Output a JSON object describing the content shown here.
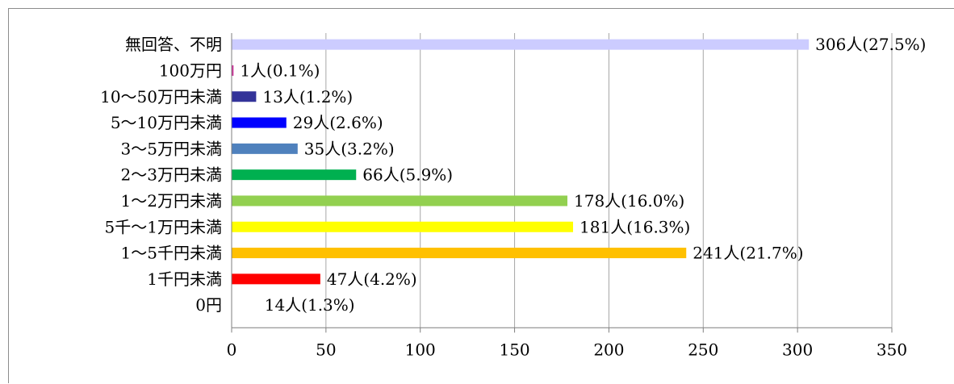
{
  "chart_data": {
    "type": "bar",
    "orientation": "horizontal",
    "categories": [
      "無回答、不明",
      "100万円",
      "10～50万円未満",
      "5～10万円未満",
      "3～5万円未満",
      "2～3万円未満",
      "1～2万円未満",
      "5千～1万円未満",
      "1～5千円未満",
      "1千円未満",
      "0円"
    ],
    "values": [
      306,
      1,
      13,
      29,
      35,
      66,
      178,
      181,
      241,
      47,
      14
    ],
    "data_labels": [
      "306人(27.5%)",
      "1人(0.1%)",
      "13人(1.2%)",
      "29人(2.6%)",
      "35人(3.2%)",
      "66人(5.9%)",
      "178人(16.0%)",
      "181人(16.3%)",
      "241人(21.7%)",
      "47人(4.2%)",
      "14人(1.3%)"
    ],
    "colors": [
      "#ccccff",
      "#cc3399",
      "#333399",
      "#0000ff",
      "#4f81bd",
      "#00b050",
      "#92d050",
      "#ffff00",
      "#ffc000",
      "#ff0000",
      "#ffffff"
    ],
    "xlim": [
      0,
      350
    ],
    "xticks": [
      0,
      50,
      100,
      150,
      200,
      250,
      300,
      350
    ],
    "title": "",
    "xlabel": "",
    "ylabel": "",
    "grid": "vertical",
    "legend": "none"
  }
}
